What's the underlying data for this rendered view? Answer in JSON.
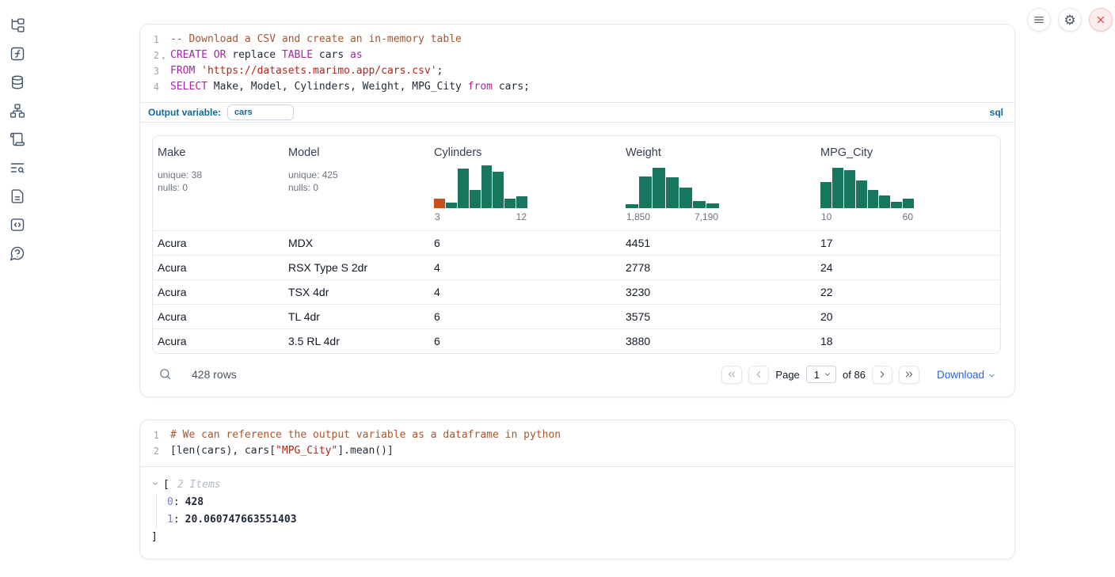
{
  "colors": {
    "hist_green": "#17775e",
    "hist_orange": "#c6511f",
    "accent_blue": "#0d6a9f",
    "link_blue": "#2563eb"
  },
  "sidebar": {
    "icons": [
      "file-explorer",
      "functions",
      "datasources",
      "dependency-graph",
      "scratchpad",
      "logs",
      "documentation",
      "snippets",
      "help"
    ]
  },
  "topbar": {
    "buttons": [
      "menu",
      "settings",
      "shutdown"
    ]
  },
  "cell1": {
    "lines": [
      {
        "num": "1",
        "tokens": [
          {
            "t": "-- Download a CSV and create an in-memory table",
            "c": "comment"
          }
        ]
      },
      {
        "num": "2",
        "fold": true,
        "tokens": [
          {
            "t": "CREATE",
            "c": "kw"
          },
          {
            "t": " ",
            "c": "plain"
          },
          {
            "t": "OR",
            "c": "kw"
          },
          {
            "t": " replace ",
            "c": "plain"
          },
          {
            "t": "TABLE",
            "c": "kw"
          },
          {
            "t": " cars ",
            "c": "plain"
          },
          {
            "t": "as",
            "c": "kw"
          }
        ]
      },
      {
        "num": "3",
        "tokens": [
          {
            "t": "FROM",
            "c": "kw"
          },
          {
            "t": " ",
            "c": "plain"
          },
          {
            "t": "'https://datasets.marimo.app/cars.csv'",
            "c": "str"
          },
          {
            "t": ";",
            "c": "plain"
          }
        ]
      },
      {
        "num": "4",
        "tokens": [
          {
            "t": "SELECT",
            "c": "kw"
          },
          {
            "t": " Make, Model, Cylinders, Weight, MPG_City ",
            "c": "plain"
          },
          {
            "t": "from",
            "c": "kw"
          },
          {
            "t": " cars;",
            "c": "plain"
          }
        ]
      }
    ],
    "footer": {
      "label": "Output variable:",
      "value": "cars",
      "lang": "sql"
    }
  },
  "table": {
    "columns": [
      {
        "title": "Make",
        "stats": [
          "unique: 38",
          "nulls: 0"
        ]
      },
      {
        "title": "Model",
        "stats": [
          "unique: 425",
          "nulls: 0"
        ]
      },
      {
        "title": "Cylinders",
        "histogram": {
          "values": [
            0.22,
            0.13,
            0.92,
            0.42,
            1,
            0.85,
            0.22,
            0.28
          ],
          "bar_colors": [
            "orange",
            "green",
            "green",
            "green",
            "green",
            "green",
            "green",
            "green"
          ],
          "min": "3",
          "max": "12"
        }
      },
      {
        "title": "Weight",
        "histogram": {
          "values": [
            0.1,
            0.75,
            0.95,
            0.72,
            0.48,
            0.16,
            0.11
          ],
          "min": "1,850",
          "max": "7,190"
        }
      },
      {
        "title": "MPG_City",
        "histogram": {
          "values": [
            0.62,
            0.95,
            0.88,
            0.65,
            0.42,
            0.3,
            0.14,
            0.22
          ],
          "min": "10",
          "max": "60"
        }
      }
    ],
    "rows": [
      [
        "Acura",
        "MDX",
        "6",
        "4451",
        "17"
      ],
      [
        "Acura",
        "RSX Type S 2dr",
        "4",
        "2778",
        "24"
      ],
      [
        "Acura",
        "TSX 4dr",
        "4",
        "3230",
        "22"
      ],
      [
        "Acura",
        "TL 4dr",
        "6",
        "3575",
        "20"
      ],
      [
        "Acura",
        "3.5 RL 4dr",
        "6",
        "3880",
        "18"
      ]
    ],
    "footer": {
      "row_count": "428 rows",
      "page_label": "Page",
      "page_value": "1",
      "of_label": "of 86",
      "download_label": "Download"
    }
  },
  "cell2": {
    "lines": [
      {
        "num": "1",
        "tokens": [
          {
            "t": "# We can reference the output variable as a dataframe in python",
            "c": "comment"
          }
        ]
      },
      {
        "num": "2",
        "tokens": [
          {
            "t": "[len(cars), cars[",
            "c": "plain"
          },
          {
            "t": "\"MPG_City\"",
            "c": "str"
          },
          {
            "t": "].mean()]",
            "c": "plain"
          }
        ]
      }
    ],
    "output": {
      "bracket_open": "[",
      "items_label": "2 Items",
      "entries": [
        {
          "key": "0",
          "value": "428"
        },
        {
          "key": "1",
          "value": "20.060747663551403"
        }
      ],
      "bracket_close": "]"
    }
  }
}
